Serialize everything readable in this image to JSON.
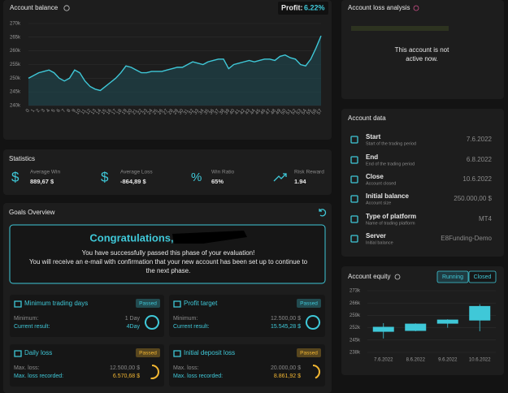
{
  "chart_data": [
    {
      "type": "line",
      "title": "Account balance",
      "x": [
        0,
        1,
        2,
        3,
        4,
        5,
        6,
        7,
        8,
        9,
        10,
        11,
        12,
        13,
        14,
        15,
        16,
        17,
        18,
        19,
        20,
        21,
        22,
        23,
        24,
        25,
        26,
        27,
        28,
        29,
        30,
        31,
        32,
        33,
        34,
        35,
        36,
        37,
        38,
        39,
        40,
        41,
        42,
        43,
        44,
        45,
        46,
        47,
        48,
        49,
        50,
        51,
        52,
        53,
        54,
        55,
        56,
        57
      ],
      "values": [
        250,
        251,
        252,
        252.5,
        253,
        252,
        250,
        249,
        250,
        253,
        252,
        249,
        247,
        246,
        245.5,
        247,
        248.5,
        250,
        252,
        254.5,
        254,
        253,
        252,
        252,
        252.5,
        252.5,
        252.5,
        253,
        253.5,
        254,
        254,
        255,
        256,
        255.5,
        255,
        256,
        256.5,
        257,
        257,
        253.5,
        255,
        255.5,
        256,
        256.5,
        256,
        256.5,
        257,
        257,
        256.5,
        258,
        258.5,
        257.5,
        257,
        255,
        254.5,
        257,
        261,
        265.5
      ],
      "color": "#3fc8d8",
      "xlim": [
        0,
        57
      ],
      "xticks": [
        0,
        1,
        2,
        3,
        4,
        5,
        6,
        7,
        8,
        9,
        10,
        11,
        12,
        13,
        14,
        15,
        16,
        17,
        18,
        19,
        20,
        21,
        22,
        23,
        24,
        25,
        26,
        27,
        28,
        29,
        30,
        31,
        32,
        33,
        34,
        35,
        36,
        37,
        38,
        39,
        40,
        41,
        42,
        43,
        44,
        45,
        46,
        47,
        48,
        49,
        50,
        51,
        52,
        53,
        54,
        55,
        56,
        57
      ],
      "ylim": [
        240,
        270
      ],
      "yticks": [
        {
          "value": 240,
          "label": "240k"
        },
        {
          "value": 245,
          "label": "245k"
        },
        {
          "value": 250,
          "label": "250k"
        },
        {
          "value": 255,
          "label": "255k"
        },
        {
          "value": 260,
          "label": "260k"
        },
        {
          "value": 265,
          "label": "265k"
        },
        {
          "value": 270,
          "label": "270k"
        }
      ]
    },
    {
      "type": "candlestick",
      "title": "Account equity",
      "categories": [
        "7.6.2022",
        "8.6.2022",
        "9.6.2022",
        "10.6.2022"
      ],
      "open": [
        252.5,
        250.2,
        254.3,
        256.1
      ],
      "high": [
        254.6,
        254.5,
        256.8,
        265.3
      ],
      "low": [
        245.9,
        250,
        252,
        250
      ],
      "close": [
        249.7,
        254.3,
        256.6,
        264.3
      ],
      "color": "#3fc8d8",
      "ylim": [
        238,
        273
      ],
      "yticks": [
        {
          "value": 238,
          "label": "238k"
        },
        {
          "value": 245,
          "label": "245k"
        },
        {
          "value": 252,
          "label": "252k"
        },
        {
          "value": 259,
          "label": "259k"
        },
        {
          "value": 266,
          "label": "266k"
        },
        {
          "value": 273,
          "label": "273k"
        }
      ]
    }
  ],
  "profit": {
    "label": "Profit:",
    "value": "6.22%"
  },
  "loss_analysis": {
    "title": "Account loss analysis",
    "message": [
      "This account is not",
      "active now."
    ]
  },
  "equity_tabs": [
    "Running",
    "Closed"
  ],
  "statistics": {
    "title": "Statistics",
    "items": [
      {
        "label": "Average Win",
        "value": "889,67 $"
      },
      {
        "label": "Average Loss",
        "value": "-864,89 $"
      },
      {
        "label": "Win Ratio",
        "value": "65%"
      },
      {
        "label": "Risk Reward",
        "value": "1.94"
      }
    ]
  },
  "goals": {
    "title": "Goals Overview",
    "congrats": {
      "heading": "Congratulations,",
      "lines": [
        "You have successfully passed this phase of your evaluation!",
        "You will receive an e-mail with confirmation that your new account has been set up to continue to",
        "the next phase."
      ]
    },
    "cards": [
      {
        "title": "Minimum trading days",
        "status": "Passed",
        "label1": "Minimum:",
        "value1": "1 Day",
        "label2": "Current result:",
        "value2": "4Day"
      },
      {
        "title": "Profit target",
        "status": "Passed",
        "label1": "Minimum:",
        "value1": "12.500,00 $",
        "label2": "Current result:",
        "value2": "15.545,28 $"
      },
      {
        "title": "Daily loss",
        "status": "Passed",
        "label1": "Max. loss:",
        "value1": "12.500,00 $",
        "label2": "Max. loss recorded:",
        "value2": "6.570,68 $"
      },
      {
        "title": "Initial deposit loss",
        "status": "Passed",
        "label1": "Max. loss:",
        "value1": "20.000,00 $",
        "label2": "Max. loss recorded:",
        "value2": "8.861,92 $"
      }
    ]
  },
  "account_data": {
    "title": "Account data",
    "rows": [
      {
        "name": "Start",
        "sub": "Start of the trading period",
        "value": "7.6.2022"
      },
      {
        "name": "End",
        "sub": "End of the trading period",
        "value": "6.8.2022"
      },
      {
        "name": "Close",
        "sub": "Account closed",
        "value": "10.6.2022"
      },
      {
        "name": "Initial balance",
        "sub": "Account size",
        "value": "250.000,00 $"
      },
      {
        "name": "Type of platform",
        "sub": "Name of trading platform",
        "value": "MT4"
      },
      {
        "name": "Server",
        "sub": "Initial balance",
        "value": "E8Funding-Demo"
      }
    ]
  }
}
